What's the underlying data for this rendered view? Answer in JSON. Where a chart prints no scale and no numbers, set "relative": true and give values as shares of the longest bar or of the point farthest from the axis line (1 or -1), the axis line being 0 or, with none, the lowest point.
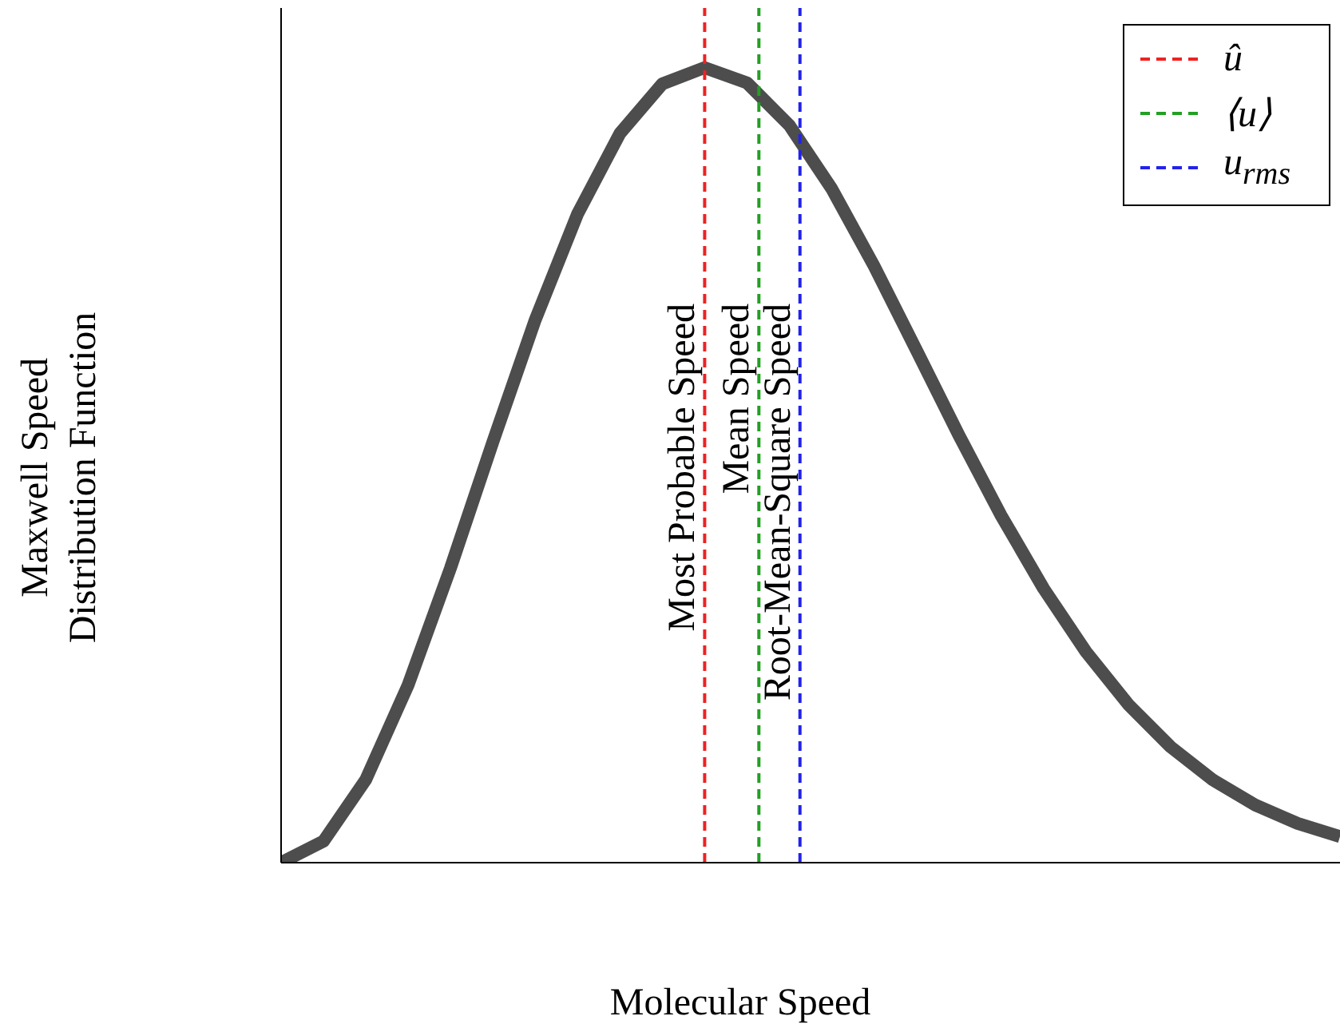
{
  "chart_data": {
    "type": "line",
    "xlabel": "Molecular Speed",
    "ylabel": "Maxwell Speed\nDistribution Function",
    "relative": true,
    "grid": false,
    "marker": "none",
    "line_style": "solid",
    "categories": [
      null,
      null,
      null,
      null,
      null,
      null,
      null,
      null,
      null,
      null,
      null,
      null,
      null,
      null,
      null,
      null,
      null,
      null,
      null,
      null,
      null,
      null,
      null,
      null,
      null,
      null
    ],
    "series": [
      {
        "color": "#4d4d4d",
        "values": [
          0,
          0.0269,
          0.1045,
          0.2236,
          0.3706,
          0.5292,
          0.6827,
          0.816,
          0.9173,
          0.9795,
          1,
          0.9808,
          0.9274,
          0.8477,
          0.7505,
          0.6446,
          0.5379,
          0.4366,
          0.345,
          0.2655,
          0.1991,
          0.1457,
          0.104,
          0.0725,
          0.0493,
          0.0328
        ]
      }
    ],
    "ref_lines": [
      {
        "axis": "x",
        "label": "û",
        "color": "#ee2222",
        "line_style": "dashed"
      },
      {
        "axis": "x",
        "label": "⟨u⟩",
        "color": "#22a022",
        "line_style": "dashed"
      },
      {
        "axis": "x",
        "label": "u$_{rms}$",
        "color": "#2222ee",
        "line_style": "dashed"
      }
    ],
    "annotations": [
      "Most Probable Speed",
      "Mean Speed",
      "Root-Mean-Square Speed"
    ]
  }
}
